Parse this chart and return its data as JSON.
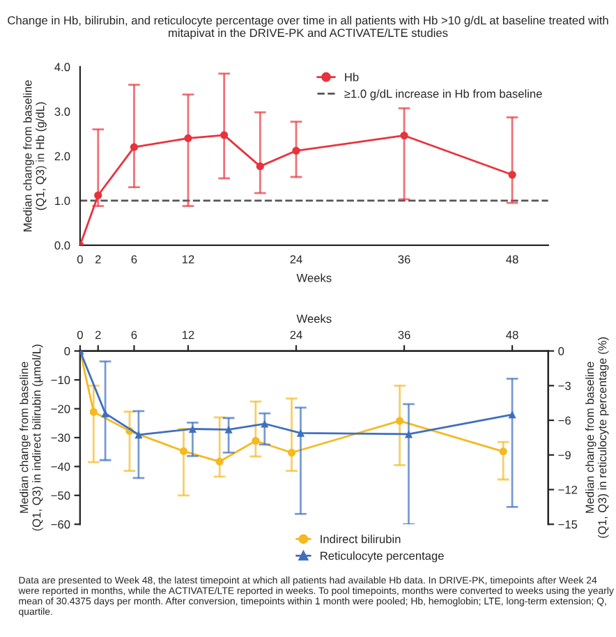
{
  "chart_data": [
    {
      "type": "line",
      "title": "Change in Hb, bilirubin, and reticulocyte percentage over time in all patients with Hb >10 g/dL at baseline treated with mitapivat in the DRIVE-PK and ACTIVATE/LTE studies",
      "xlabel": "Weeks",
      "ylabel": "Median change from baseline\n(Q1, Q3) in Hb (g/dL)",
      "xlim": [
        0,
        52
      ],
      "xticks": [
        0,
        2,
        6,
        12,
        24,
        36,
        48
      ],
      "ylim": [
        0,
        4
      ],
      "yticks": [
        {
          "value": 0,
          "label": "0.0"
        },
        {
          "value": 1,
          "label": "1.0"
        },
        {
          "value": 2,
          "label": "2.0"
        },
        {
          "value": 3,
          "label": "3.0"
        },
        {
          "value": 4,
          "label": "4.0"
        }
      ],
      "marker": "circle",
      "line_style": "solid",
      "legend": "top right",
      "grid": false,
      "series": [
        {
          "name": "Hb",
          "color": "#e8333c",
          "x": [
            0,
            2,
            6,
            12,
            16,
            20,
            24,
            36,
            48
          ],
          "values": [
            0,
            1.12,
            2.2,
            2.4,
            2.47,
            1.77,
            2.12,
            2.46,
            1.58
          ],
          "errors": [
            null,
            [
              0.88,
              2.6
            ],
            [
              1.3,
              3.6
            ],
            [
              0.88,
              3.38
            ],
            [
              1.5,
              3.85
            ],
            [
              1.17,
              2.98
            ],
            [
              1.53,
              2.77
            ],
            [
              1.03,
              3.07
            ],
            [
              0.95,
              2.87
            ]
          ]
        }
      ],
      "ref_lines": [
        {
          "axis": "y",
          "value": 1,
          "label": "≥1.0 g/dL increase in Hb from baseline",
          "color": "#555555",
          "line_style": "dashed"
        }
      ]
    },
    {
      "type": "line",
      "xlabel": "Weeks",
      "xlim": [
        0,
        52
      ],
      "xticks": [
        0,
        2,
        6,
        12,
        24,
        36,
        48
      ],
      "ylabel": "Median change from baseline\n(Q1, Q3) in indirect bilirubin (µmol/L)",
      "ylim": [
        -60,
        0
      ],
      "yticks": [
        0,
        {
          "value": -10,
          "label": "−10"
        },
        {
          "value": -20,
          "label": "−20"
        },
        {
          "value": -30,
          "label": "−30"
        },
        {
          "value": -40,
          "label": "−40"
        },
        {
          "value": -50,
          "label": "−50"
        },
        {
          "value": -60,
          "label": "−60"
        }
      ],
      "y2label": "Median change from baseline\n(Q1, Q3) in reticulocyte percentage (%)",
      "y2lim": [
        -15,
        0
      ],
      "y2ticks": [
        0,
        {
          "value": -3,
          "label": "−3"
        },
        {
          "value": -6,
          "label": "−6"
        },
        {
          "value": -9,
          "label": "−9"
        },
        {
          "value": -12,
          "label": "−12"
        },
        {
          "value": -15,
          "label": "−15"
        }
      ],
      "line_style": "solid",
      "legend": "bottom",
      "grid": false,
      "series": [
        {
          "name": "Indirect bilirubin",
          "color": "#f5b921",
          "marker": "circle",
          "x": [
            0,
            1.5,
            5.5,
            11.5,
            15.5,
            19.5,
            23.5,
            35.5,
            47
          ],
          "values": [
            0,
            -21.1,
            -27.7,
            -34.7,
            -38.3,
            -31.1,
            -35.2,
            -24.2,
            -34.8
          ],
          "errors": [
            null,
            [
              -38.5,
              -12
            ],
            [
              -41.5,
              -21
            ],
            [
              -50,
              -27
            ],
            [
              -43.5,
              -23
            ],
            [
              -36.5,
              -17.5
            ],
            [
              -41.5,
              -16.5
            ],
            [
              -39.5,
              -12
            ],
            [
              -44.5,
              -31.5
            ]
          ]
        },
        {
          "name": "Reticulocyte percentage",
          "color": "#3f6fbf",
          "marker": "triangle",
          "axis": "y2",
          "x": [
            0,
            2.8,
            6.5,
            12.5,
            16.5,
            20.5,
            24.5,
            36.5,
            48
          ],
          "values": [
            0,
            -5.4,
            -7.25,
            -6.75,
            -6.8,
            -6.3,
            -7.1,
            -7.2,
            -5.5
          ],
          "errors": [
            null,
            [
              -9.45,
              -0.9
            ],
            [
              -11,
              -5.2
            ],
            [
              -9.1,
              -6.2
            ],
            [
              -8.8,
              -5.8
            ],
            [
              -8.1,
              -5.4
            ],
            [
              -14.1,
              -4.9
            ],
            [
              -15,
              -4.6
            ],
            [
              -13.5,
              -2.4
            ]
          ]
        }
      ],
      "annotations": [
        "Data are presented to Week 48, the latest timepoint at which all patients had available Hb data. In DRIVE-PK, timepoints after Week 24 were reported in months, while the ACTIVATE/LTE reported in weeks. To pool timepoints, months were converted to weeks using the yearly mean of 30.4375 days per month. After conversion, timepoints within 1 month were pooled; Hb, hemoglobin; LTE, long-term extension; Q, quartile."
      ]
    }
  ]
}
